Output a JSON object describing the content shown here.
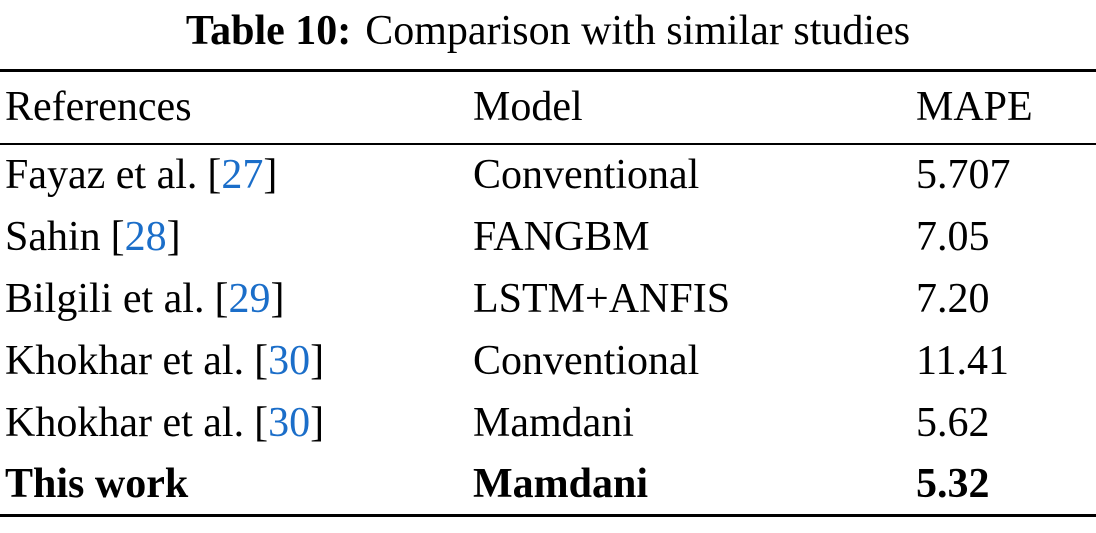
{
  "title": {
    "prefix": "Table 10:",
    "text": "Comparison with similar studies"
  },
  "colors": {
    "citation_link": "#1b6ec9",
    "text": "#000000",
    "background": "#ffffff"
  },
  "table": {
    "columns": [
      {
        "key": "reference",
        "label": "References"
      },
      {
        "key": "model",
        "label": "Model"
      },
      {
        "key": "mape",
        "label": "MAPE"
      }
    ],
    "rows": [
      {
        "reference": "Fayaz et al.",
        "citation": "27",
        "model": "Conventional",
        "mape": "5.707",
        "bold": false
      },
      {
        "reference": "Sahin",
        "citation": "28",
        "model": "FANGBM",
        "mape": "7.05",
        "bold": false
      },
      {
        "reference": "Bilgili et al.",
        "citation": "29",
        "model": "LSTM+ANFIS",
        "mape": "7.20",
        "bold": false
      },
      {
        "reference": "Khokhar et al.",
        "citation": "30",
        "model": "Conventional",
        "mape": "11.41",
        "bold": false
      },
      {
        "reference": "Khokhar et al.",
        "citation": "30",
        "model": "Mamdani",
        "mape": "5.62",
        "bold": false
      },
      {
        "reference": "This work",
        "citation": null,
        "model": "Mamdani",
        "mape": "5.32",
        "bold": true
      }
    ]
  }
}
